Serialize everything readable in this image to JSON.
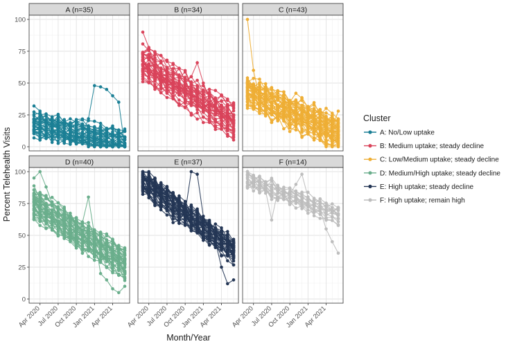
{
  "chart_data": {
    "type": "line",
    "subtype": "faceted spaghetti plot (one line per practice)",
    "xlabel": "Month/Year",
    "ylabel": "Percent Telehealth Visits",
    "ylim": [
      0,
      100
    ],
    "y_ticks": [
      0,
      25,
      50,
      75,
      100
    ],
    "x_ticks": [
      "Apr 2020",
      "Jul 2020",
      "Oct 2020",
      "Jan 2021",
      "Apr 2021"
    ],
    "x_months": [
      "Mar 2020",
      "Apr 2020",
      "May 2020",
      "Jun 2020",
      "Jul 2020",
      "Aug 2020",
      "Sep 2020",
      "Oct 2020",
      "Nov 2020",
      "Dec 2020",
      "Jan 2021",
      "Feb 2021",
      "Mar 2021",
      "Apr 2021",
      "May 2021",
      "Jun 2021"
    ],
    "x_tick_index": [
      1,
      4,
      7,
      10,
      13
    ],
    "grid": true,
    "legend_title": "Cluster",
    "legend_position": "right",
    "panels": [
      {
        "id": "A",
        "strip": "A (n=35)",
        "n": 35,
        "color": "#1b7f95",
        "legend": "A: No/Low uptake",
        "start": 18,
        "end": 4,
        "spread": 8,
        "noise": 4,
        "min": 0,
        "max": 50,
        "highlight": [
          32,
          28,
          18,
          22,
          15,
          12,
          8,
          6,
          10,
          22,
          48,
          47,
          45,
          40,
          35,
          0
        ]
      },
      {
        "id": "B",
        "strip": "B (n=34)",
        "n": 34,
        "color": "#d9435a",
        "legend": "B: Medium uptake; steady decline",
        "start": 66,
        "end": 20,
        "spread": 12,
        "noise": 5,
        "min": 0,
        "max": 92,
        "highlight": [
          90,
          78,
          60,
          48,
          42,
          38,
          45,
          50,
          55,
          66,
          50,
          38,
          30,
          25,
          22,
          20
        ]
      },
      {
        "id": "C",
        "strip": "C (n=43)",
        "n": 43,
        "color": "#eeae35",
        "legend": "C: Low/Medium uptake; steady decline",
        "start": 42,
        "end": 10,
        "spread": 12,
        "noise": 5,
        "min": 0,
        "max": 100,
        "highlight": [
          100,
          60,
          38,
          30,
          25,
          22,
          30,
          35,
          42,
          38,
          20,
          30,
          25,
          18,
          15,
          28
        ]
      },
      {
        "id": "D",
        "strip": "D (n=40)",
        "n": 40,
        "color": "#6aae8c",
        "legend": "D: Medium/High uptake; steady decline",
        "start": 75,
        "end": 28,
        "spread": 11,
        "noise": 5,
        "min": 2,
        "max": 100,
        "highlight": [
          95,
          100,
          88,
          75,
          60,
          48,
          45,
          40,
          60,
          80,
          50,
          20,
          15,
          8,
          5,
          10
        ]
      },
      {
        "id": "E",
        "strip": "E (n=37)",
        "n": 37,
        "color": "#243655",
        "legend": "E: High uptake; steady decline",
        "start": 92,
        "end": 38,
        "spread": 7,
        "noise": 5,
        "min": 10,
        "max": 100,
        "highlight": [
          100,
          100,
          95,
          85,
          70,
          60,
          62,
          68,
          100,
          98,
          65,
          55,
          45,
          25,
          12,
          15
        ]
      },
      {
        "id": "F",
        "strip": "F (n=14)",
        "n": 14,
        "color": "#bdbdbd",
        "legend": "F: High uptake; remain high",
        "start": 94,
        "end": 66,
        "spread": 6,
        "noise": 4,
        "min": 36,
        "max": 100,
        "highlight": [
          98,
          95,
          90,
          85,
          62,
          85,
          80,
          82,
          90,
          98,
          80,
          75,
          70,
          55,
          45,
          36
        ]
      }
    ]
  }
}
